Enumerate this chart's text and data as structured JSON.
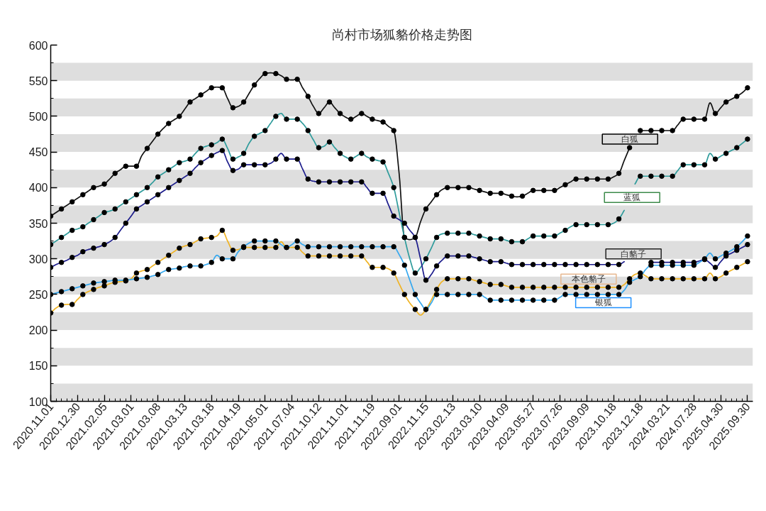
{
  "chart_data": {
    "type": "line",
    "title": "尚村市场狐貉价格走势图",
    "categories": [
      "2020.11.01",
      null,
      null,
      null,
      null,
      "2020.12.30",
      null,
      null,
      null,
      null,
      "2021.02.05",
      null,
      null,
      null,
      null,
      "2021.03.01",
      null,
      null,
      null,
      null,
      "2021.03.08",
      null,
      null,
      null,
      null,
      "2021.03.13",
      null,
      null,
      null,
      null,
      "2021.03.18",
      null,
      null,
      null,
      null,
      "2021.04.19",
      null,
      null,
      null,
      null,
      "2021.05.01",
      null,
      null,
      null,
      null,
      "2021.07.04",
      null,
      null,
      null,
      null,
      "2021.10.12",
      null,
      null,
      null,
      null,
      "2021.11.01",
      null,
      null,
      null,
      null,
      "2021.11.19",
      null,
      null,
      null,
      null,
      "2022.09.01",
      null,
      null,
      null,
      null,
      "2022.11.15",
      null,
      null,
      null,
      null,
      "2023.02.13",
      null,
      null,
      null,
      null,
      "2023.03.10",
      null,
      null,
      null,
      null,
      "2023.04.09",
      null,
      null,
      null,
      null,
      "2023.05.27",
      null,
      null,
      null,
      null,
      "2023.07.26",
      null,
      null,
      null,
      null,
      "2023.09.09",
      null,
      null,
      null,
      null,
      "2023.10.18",
      null,
      null,
      null,
      null,
      "2023.12.18",
      null,
      null,
      null,
      null,
      "2024.03.21",
      null,
      null,
      null,
      null,
      "2024.07.28",
      null,
      null,
      null,
      null,
      "2025.04.30",
      null,
      null,
      null,
      null,
      "2025.09.30"
    ],
    "ylim": [
      100,
      600
    ],
    "yticks": [
      100,
      {
        "value": 125,
        "label": null
      },
      150,
      {
        "value": 175,
        "label": null
      },
      200,
      {
        "value": 225,
        "label": null
      },
      250,
      {
        "value": 275,
        "label": null
      },
      300,
      {
        "value": 325,
        "label": null
      },
      350,
      {
        "value": 375,
        "label": null
      },
      400,
      {
        "value": 425,
        "label": null
      },
      450,
      {
        "value": 475,
        "label": null
      },
      500,
      {
        "value": 525,
        "label": null
      },
      550,
      {
        "value": 575,
        "label": null
      },
      600
    ],
    "bands": [
      {
        "axis": "y",
        "from": 100,
        "to": 125,
        "color": "#dedede"
      },
      {
        "axis": "y",
        "from": 150,
        "to": 175,
        "color": "#dedede"
      },
      {
        "axis": "y",
        "from": 200,
        "to": 225,
        "color": "#dedede"
      },
      {
        "axis": "y",
        "from": 250,
        "to": 275,
        "color": "#dedede"
      },
      {
        "axis": "y",
        "from": 300,
        "to": 325,
        "color": "#dedede"
      },
      {
        "axis": "y",
        "from": 350,
        "to": 375,
        "color": "#dedede"
      },
      {
        "axis": "y",
        "from": 400,
        "to": 425,
        "color": "#dedede"
      },
      {
        "axis": "y",
        "from": 450,
        "to": 475,
        "color": "#dedede"
      },
      {
        "axis": "y",
        "from": 500,
        "to": 525,
        "color": "#dedede"
      },
      {
        "axis": "y",
        "from": 550,
        "to": 575,
        "color": "#dedede"
      }
    ],
    "series": [
      {
        "name": "白狐",
        "color": "#111111",
        "values": [
          360,
          365,
          370,
          375,
          380,
          385,
          390,
          395,
          400,
          402,
          405,
          412,
          420,
          425,
          430,
          430,
          430,
          445,
          455,
          465,
          475,
          483,
          490,
          495,
          500,
          510,
          520,
          525,
          530,
          535,
          540,
          541,
          540,
          525,
          512,
          514,
          520,
          532,
          544,
          553,
          560,
          561,
          560,
          557,
          552,
          551,
          552,
          540,
          528,
          514,
          504,
          512,
          520,
          512,
          504,
          499,
          496,
          500,
          504,
          500,
          496,
          494,
          492,
          486,
          480,
          420,
          330,
          327,
          330,
          352,
          370,
          380,
          390,
          397,
          400,
          400,
          400,
          400,
          400,
          398,
          396,
          394,
          392,
          392,
          392,
          390,
          388,
          387,
          388,
          392,
          396,
          396,
          396,
          396,
          396,
          400,
          404,
          408,
          412,
          412,
          412,
          412,
          412,
          412,
          412,
          415,
          420,
          438,
          456,
          null,
          480,
          480,
          480,
          480,
          480,
          480,
          480,
          488,
          496,
          496,
          496,
          496,
          496,
          519,
          504,
          512,
          520,
          524,
          528,
          533,
          540
        ]
      },
      {
        "name": "蓝狐",
        "color": "#2e9b9b",
        "values": [
          320,
          325,
          330,
          335,
          340,
          342,
          345,
          350,
          355,
          360,
          365,
          367,
          370,
          375,
          380,
          385,
          390,
          395,
          400,
          407,
          415,
          420,
          425,
          430,
          435,
          437,
          440,
          448,
          455,
          458,
          460,
          463,
          468,
          455,
          440,
          443,
          448,
          462,
          472,
          476,
          480,
          490,
          500,
          504,
          496,
          496,
          496,
          490,
          480,
          467,
          456,
          458,
          464,
          456,
          448,
          443,
          440,
          444,
          448,
          443,
          440,
          438,
          436,
          420,
          400,
          365,
          330,
          300,
          280,
          288,
          300,
          315,
          330,
          335,
          336,
          336,
          336,
          336,
          336,
          334,
          332,
          330,
          328,
          328,
          328,
          326,
          324,
          324,
          324,
          328,
          332,
          332,
          332,
          332,
          332,
          336,
          340,
          345,
          348,
          348,
          348,
          348,
          348,
          348,
          348,
          350,
          356,
          368,
          null,
          405,
          416,
          416,
          416,
          416,
          416,
          416,
          416,
          424,
          432,
          432,
          432,
          432,
          432,
          448,
          440,
          444,
          448,
          452,
          456,
          462,
          468
        ]
      },
      {
        "name": "白貉子",
        "color": "#1c1c8c",
        "values": [
          288,
          292,
          295,
          298,
          302,
          305,
          310,
          313,
          315,
          317,
          320,
          324,
          330,
          340,
          350,
          360,
          370,
          375,
          380,
          385,
          390,
          395,
          400,
          405,
          410,
          415,
          420,
          428,
          435,
          440,
          445,
          449,
          452,
          436,
          424,
          426,
          432,
          432,
          432,
          432,
          432,
          434,
          440,
          448,
          440,
          440,
          440,
          426,
          412,
          409,
          408,
          408,
          408,
          408,
          408,
          408,
          408,
          408,
          408,
          400,
          392,
          392,
          392,
          376,
          360,
          355,
          350,
          340,
          330,
          300,
          270,
          278,
          290,
          298,
          304,
          304,
          304,
          304,
          304,
          302,
          300,
          298,
          296,
          296,
          296,
          294,
          292,
          292,
          292,
          292,
          292,
          292,
          292,
          292,
          292,
          292,
          292,
          292,
          292,
          292,
          292,
          292,
          292,
          292,
          292,
          292,
          292,
          296,
          null,
          null,
          null,
          null,
          295,
          295,
          295,
          295,
          295,
          295,
          295,
          295,
          295,
          297,
          299,
          294,
          288,
          296,
          304,
          308,
          312,
          316,
          320
        ]
      },
      {
        "name": "本色貉子",
        "color": "#f0b323",
        "values": [
          224,
          231,
          235,
          236,
          236,
          243,
          250,
          254,
          257,
          260,
          262,
          265,
          267,
          268,
          269,
          272,
          280,
          283,
          285,
          290,
          295,
          300,
          305,
          310,
          315,
          318,
          320,
          324,
          328,
          329,
          330,
          332,
          340,
          325,
          312,
          313,
          316,
          316,
          316,
          316,
          316,
          316,
          316,
          324,
          316,
          316,
          316,
          309,
          304,
          304,
          304,
          304,
          304,
          304,
          304,
          304,
          304,
          304,
          304,
          296,
          288,
          288,
          288,
          286,
          280,
          265,
          250,
          238,
          229,
          221,
          229,
          242,
          257,
          268,
          272,
          272,
          272,
          272,
          272,
          270,
          268,
          266,
          264,
          264,
          264,
          262,
          260,
          260,
          260,
          260,
          260,
          260,
          260,
          260,
          260,
          260,
          260,
          260,
          260,
          260,
          260,
          260,
          260,
          260,
          260,
          260,
          260,
          264,
          272,
          278,
          280,
          276,
          272,
          272,
          272,
          272,
          272,
          272,
          272,
          272,
          272,
          272,
          272,
          280,
          272,
          275,
          280,
          284,
          288,
          292,
          296
        ]
      },
      {
        "name": "银狐",
        "color": "#35a8ef",
        "values": [
          250,
          252,
          254,
          256,
          258,
          260,
          262,
          264,
          266,
          267,
          268,
          269,
          270,
          270,
          270,
          271,
          272,
          273,
          274,
          276,
          278,
          282,
          285,
          286,
          287,
          289,
          290,
          290,
          290,
          292,
          295,
          305,
          300,
          300,
          300,
          310,
          317,
          322,
          325,
          325,
          325,
          325,
          325,
          320,
          316,
          320,
          325,
          320,
          317,
          317,
          317,
          317,
          317,
          317,
          317,
          317,
          317,
          317,
          317,
          317,
          317,
          317,
          317,
          317,
          317,
          306,
          291,
          270,
          250,
          238,
          229,
          238,
          250,
          250,
          250,
          250,
          250,
          250,
          250,
          250,
          250,
          246,
          242,
          242,
          242,
          242,
          242,
          242,
          242,
          242,
          242,
          242,
          242,
          242,
          242,
          246,
          250,
          250,
          250,
          250,
          250,
          250,
          250,
          250,
          250,
          250,
          250,
          256,
          267,
          271,
          275,
          285,
          291,
          291,
          291,
          291,
          291,
          291,
          291,
          291,
          291,
          295,
          300,
          308,
          300,
          304,
          308,
          312,
          317,
          324,
          332
        ]
      },
      {
        "type": "scatter",
        "marker": "circle",
        "color": "#000000",
        "values": [
          360,
          null,
          370,
          null,
          380,
          null,
          390,
          null,
          400,
          null,
          405,
          null,
          420,
          null,
          430,
          null,
          430,
          null,
          455,
          null,
          475,
          null,
          490,
          null,
          500,
          null,
          520,
          null,
          530,
          null,
          540,
          null,
          540,
          null,
          512,
          null,
          520,
          null,
          544,
          null,
          560,
          null,
          560,
          null,
          552,
          null,
          552,
          null,
          528,
          null,
          504,
          null,
          520,
          null,
          504,
          null,
          496,
          null,
          504,
          null,
          496,
          null,
          492,
          null,
          480,
          null,
          330,
          null,
          330,
          null,
          370,
          null,
          390,
          null,
          400,
          null,
          400,
          null,
          400,
          null,
          396,
          null,
          392,
          null,
          392,
          null,
          388,
          null,
          388,
          null,
          396,
          null,
          396,
          null,
          396,
          null,
          404,
          null,
          412,
          null,
          412,
          null,
          412,
          null,
          412,
          null,
          420,
          null,
          456,
          null,
          480,
          null,
          480,
          null,
          480,
          null,
          480,
          null,
          496,
          null,
          496,
          null,
          496,
          null,
          504,
          null,
          520,
          null,
          528,
          null,
          540
        ]
      },
      {
        "type": "scatter",
        "marker": "circle",
        "color": "#000000",
        "values": [
          320,
          null,
          330,
          null,
          340,
          null,
          345,
          null,
          355,
          null,
          365,
          null,
          370,
          null,
          380,
          null,
          390,
          null,
          400,
          null,
          415,
          null,
          425,
          null,
          435,
          null,
          440,
          null,
          455,
          null,
          460,
          null,
          468,
          null,
          440,
          null,
          448,
          null,
          472,
          null,
          480,
          null,
          500,
          null,
          496,
          null,
          496,
          null,
          480,
          null,
          456,
          null,
          464,
          null,
          448,
          null,
          440,
          null,
          448,
          null,
          440,
          null,
          436,
          null,
          400,
          null,
          330,
          null,
          280,
          null,
          300,
          null,
          330,
          null,
          336,
          null,
          336,
          null,
          336,
          null,
          332,
          null,
          328,
          null,
          328,
          null,
          324,
          null,
          324,
          null,
          332,
          null,
          332,
          null,
          332,
          null,
          340,
          null,
          348,
          null,
          348,
          null,
          348,
          null,
          348,
          null,
          356,
          null,
          null,
          null,
          416,
          null,
          416,
          null,
          416,
          null,
          416,
          null,
          432,
          null,
          432,
          null,
          432,
          null,
          440,
          null,
          448,
          null,
          456,
          null,
          468
        ]
      },
      {
        "type": "scatter",
        "marker": "circle",
        "color": "#000000",
        "values": [
          288,
          null,
          295,
          null,
          302,
          null,
          310,
          null,
          315,
          null,
          320,
          null,
          330,
          null,
          350,
          null,
          370,
          null,
          380,
          null,
          390,
          null,
          400,
          null,
          410,
          null,
          420,
          null,
          435,
          null,
          445,
          null,
          452,
          null,
          424,
          null,
          432,
          null,
          432,
          null,
          432,
          null,
          440,
          null,
          440,
          null,
          440,
          null,
          412,
          null,
          408,
          null,
          408,
          null,
          408,
          null,
          408,
          null,
          408,
          null,
          392,
          null,
          392,
          null,
          360,
          null,
          350,
          null,
          330,
          null,
          270,
          null,
          290,
          null,
          304,
          null,
          304,
          null,
          304,
          null,
          300,
          null,
          296,
          null,
          296,
          null,
          292,
          null,
          292,
          null,
          292,
          null,
          292,
          null,
          292,
          null,
          292,
          null,
          292,
          null,
          292,
          null,
          292,
          null,
          292,
          null,
          292,
          null,
          null,
          null,
          null,
          null,
          295,
          null,
          295,
          null,
          295,
          null,
          295,
          null,
          295,
          null,
          299,
          null,
          288,
          null,
          304,
          null,
          312,
          null,
          320
        ]
      },
      {
        "type": "scatter",
        "marker": "circle",
        "color": "#000000",
        "values": [
          224,
          null,
          235,
          null,
          236,
          null,
          250,
          null,
          257,
          null,
          262,
          null,
          267,
          null,
          269,
          null,
          280,
          null,
          285,
          null,
          295,
          null,
          305,
          null,
          315,
          null,
          320,
          null,
          328,
          null,
          330,
          null,
          340,
          null,
          312,
          null,
          316,
          null,
          316,
          null,
          316,
          null,
          316,
          null,
          316,
          null,
          316,
          null,
          304,
          null,
          304,
          null,
          304,
          null,
          304,
          null,
          304,
          null,
          304,
          null,
          288,
          null,
          288,
          null,
          280,
          null,
          250,
          null,
          229,
          null,
          229,
          null,
          257,
          null,
          272,
          null,
          272,
          null,
          272,
          null,
          268,
          null,
          264,
          null,
          264,
          null,
          260,
          null,
          260,
          null,
          260,
          null,
          260,
          null,
          260,
          null,
          260,
          null,
          260,
          null,
          260,
          null,
          260,
          null,
          260,
          null,
          260,
          null,
          272,
          null,
          280,
          null,
          272,
          null,
          272,
          null,
          272,
          null,
          272,
          null,
          272,
          null,
          272,
          null,
          272,
          null,
          280,
          null,
          288,
          null,
          296
        ]
      },
      {
        "type": "scatter",
        "marker": "circle",
        "color": "#000000",
        "values": [
          250,
          null,
          254,
          null,
          258,
          null,
          262,
          null,
          266,
          null,
          268,
          null,
          270,
          null,
          270,
          null,
          272,
          null,
          274,
          null,
          278,
          null,
          285,
          null,
          287,
          null,
          290,
          null,
          290,
          null,
          295,
          null,
          300,
          null,
          300,
          null,
          317,
          null,
          325,
          null,
          325,
          null,
          325,
          null,
          316,
          null,
          325,
          null,
          317,
          null,
          317,
          null,
          317,
          null,
          317,
          null,
          317,
          null,
          317,
          null,
          317,
          null,
          317,
          null,
          317,
          null,
          291,
          null,
          250,
          null,
          229,
          null,
          250,
          null,
          250,
          null,
          250,
          null,
          250,
          null,
          250,
          null,
          242,
          null,
          242,
          null,
          242,
          null,
          242,
          null,
          242,
          null,
          242,
          null,
          242,
          null,
          250,
          null,
          250,
          null,
          250,
          null,
          250,
          null,
          250,
          null,
          250,
          null,
          267,
          null,
          275,
          null,
          291,
          null,
          291,
          null,
          291,
          null,
          291,
          null,
          291,
          null,
          300,
          null,
          300,
          null,
          308,
          null,
          317,
          null,
          332
        ]
      }
    ]
  }
}
